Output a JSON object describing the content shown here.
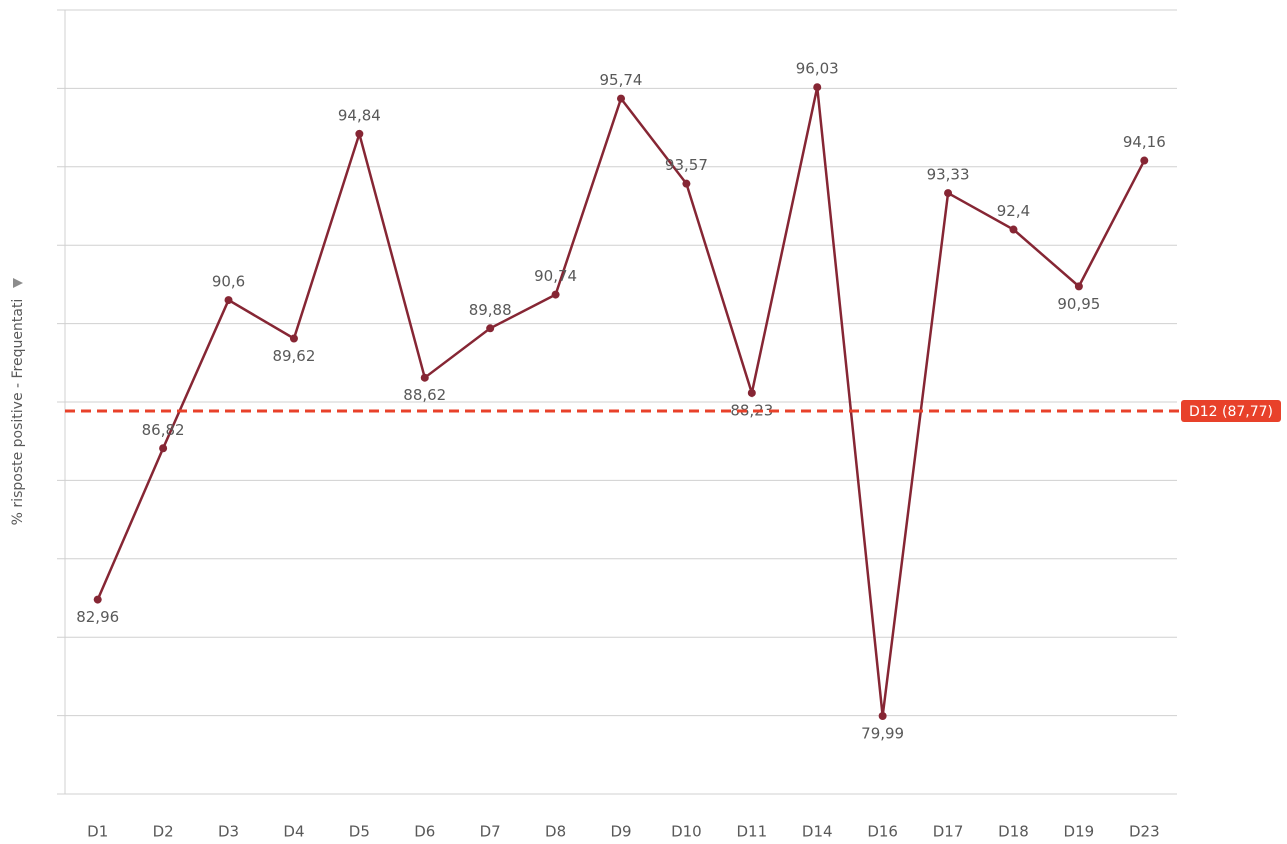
{
  "chart_data": {
    "type": "line",
    "y_axis_label": "% risposte positive - Frequentati",
    "categories": [
      "D1",
      "D2",
      "D3",
      "D4",
      "D5",
      "D6",
      "D7",
      "D8",
      "D9",
      "D10",
      "D11",
      "D14",
      "D16",
      "D17",
      "D18",
      "D19",
      "D23"
    ],
    "series": [
      {
        "name": "% risposte positive - Frequentati",
        "color": "#862634",
        "values": [
          82.96,
          86.82,
          90.6,
          89.62,
          94.84,
          88.62,
          89.88,
          90.74,
          95.74,
          93.57,
          88.23,
          96.03,
          79.99,
          93.33,
          92.4,
          90.95,
          94.16
        ],
        "value_labels": [
          "82,96",
          "86,82",
          "90,6",
          "89,62",
          "94,84",
          "88,62",
          "89,88",
          "90,74",
          "95,74",
          "93,57",
          "88,23",
          "96,03",
          "79,99",
          "93,33",
          "92,4",
          "90,95",
          "94,16"
        ]
      }
    ],
    "reference_line": {
      "value": 87.77,
      "label": "D12 (87,77)",
      "color": "#e8412a"
    },
    "ylim": [
      78,
      98
    ],
    "yticks": [
      78,
      80,
      82,
      84,
      86,
      88,
      90,
      92,
      94,
      96,
      98
    ],
    "grid": true
  }
}
